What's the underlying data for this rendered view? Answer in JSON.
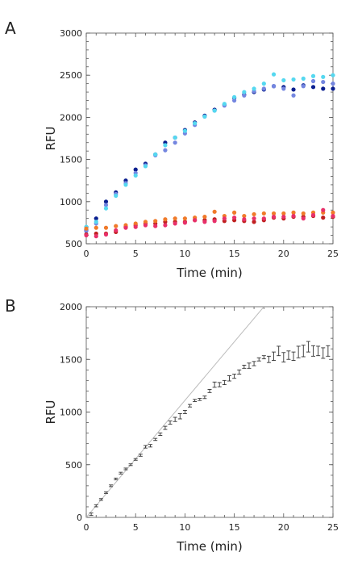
{
  "chart_data": [
    {
      "type": "scatter",
      "panel": "A",
      "xlabel": "Time (min)",
      "ylabel": "RFU",
      "xlim": [
        0,
        25
      ],
      "ylim": [
        500,
        3000
      ],
      "xticks": [
        0,
        5,
        10,
        15,
        20,
        25
      ],
      "yticks": [
        500,
        1000,
        1500,
        2000,
        2500,
        3000
      ],
      "grid": false,
      "series": [
        {
          "color": "#0a1f8f",
          "x": [
            0,
            1,
            2,
            3,
            4,
            5,
            6,
            7,
            8,
            9,
            10,
            11,
            12,
            13,
            14,
            15,
            16,
            17,
            18,
            19,
            20,
            21,
            22,
            23,
            24,
            25
          ],
          "y": [
            660,
            800,
            1000,
            1110,
            1250,
            1380,
            1450,
            1560,
            1700,
            1760,
            1850,
            1940,
            2020,
            2090,
            2150,
            2230,
            2270,
            2300,
            2330,
            2370,
            2360,
            2330,
            2380,
            2360,
            2340,
            2340
          ]
        },
        {
          "color": "#7486e0",
          "x": [
            0,
            1,
            2,
            3,
            4,
            5,
            6,
            7,
            8,
            9,
            10,
            11,
            12,
            13,
            14,
            15,
            16,
            17,
            18,
            19,
            20,
            21,
            22,
            23,
            24,
            25
          ],
          "y": [
            650,
            740,
            960,
            1090,
            1220,
            1340,
            1430,
            1550,
            1610,
            1700,
            1810,
            1910,
            2010,
            2080,
            2140,
            2200,
            2260,
            2310,
            2340,
            2370,
            2340,
            2260,
            2370,
            2430,
            2420,
            2400
          ]
        },
        {
          "color": "#55d8f0",
          "x": [
            0,
            1,
            2,
            3,
            4,
            5,
            6,
            7,
            8,
            9,
            10,
            11,
            12,
            13,
            14,
            15,
            16,
            17,
            18,
            19,
            20,
            21,
            22,
            23,
            24,
            25
          ],
          "y": [
            700,
            760,
            920,
            1070,
            1200,
            1310,
            1420,
            1560,
            1670,
            1760,
            1840,
            1930,
            2010,
            2080,
            2160,
            2240,
            2300,
            2340,
            2400,
            2510,
            2440,
            2450,
            2460,
            2490,
            2480,
            2500
          ]
        },
        {
          "color": "#c02020",
          "x": [
            0,
            1,
            2,
            3,
            4,
            5,
            6,
            7,
            8,
            9,
            10,
            11,
            12,
            13,
            14,
            15,
            16,
            17,
            18,
            19,
            20,
            21,
            22,
            23,
            24,
            25
          ],
          "y": [
            610,
            620,
            620,
            640,
            700,
            720,
            740,
            740,
            760,
            760,
            760,
            780,
            780,
            790,
            770,
            780,
            770,
            760,
            780,
            810,
            800,
            820,
            820,
            830,
            810,
            820
          ]
        },
        {
          "color": "#f07a2a",
          "x": [
            0,
            1,
            2,
            3,
            4,
            5,
            6,
            7,
            8,
            9,
            10,
            11,
            12,
            13,
            14,
            15,
            16,
            17,
            18,
            19,
            20,
            21,
            22,
            23,
            24,
            25
          ],
          "y": [
            680,
            690,
            690,
            710,
            720,
            740,
            760,
            770,
            790,
            800,
            800,
            810,
            820,
            880,
            830,
            870,
            830,
            850,
            860,
            860,
            860,
            870,
            860,
            870,
            870,
            870
          ]
        },
        {
          "color": "#e8306a",
          "x": [
            0,
            1,
            2,
            3,
            4,
            5,
            6,
            7,
            8,
            9,
            10,
            11,
            12,
            13,
            14,
            15,
            16,
            17,
            18,
            19,
            20,
            21,
            22,
            23,
            24,
            25
          ],
          "y": [
            600,
            590,
            610,
            660,
            690,
            700,
            720,
            710,
            720,
            740,
            750,
            780,
            760,
            770,
            800,
            810,
            790,
            800,
            800,
            820,
            820,
            830,
            800,
            840,
            900,
            830
          ]
        }
      ]
    },
    {
      "type": "scatter",
      "panel": "B",
      "xlabel": "Time (min)",
      "ylabel": "RFU",
      "xlim": [
        0,
        25
      ],
      "ylim": [
        0,
        2000
      ],
      "xticks": [
        0,
        5,
        10,
        15,
        20,
        25
      ],
      "yticks": [
        0,
        500,
        1000,
        1500,
        2000
      ],
      "grid": false,
      "series": [
        {
          "color": "#333333",
          "x": [
            0.5,
            1,
            1.5,
            2,
            2.5,
            3,
            3.5,
            4,
            4.5,
            5,
            5.5,
            6,
            6.5,
            7,
            7.5,
            8,
            8.5,
            9,
            9.5,
            10,
            10.5,
            11,
            11.5,
            12,
            12.5,
            13,
            13.5,
            14,
            14.5,
            15,
            15.5,
            16,
            16.5,
            17,
            17.5,
            18,
            18.5,
            19,
            19.5,
            20,
            20.5,
            21,
            21.5,
            22,
            22.5,
            23,
            23.5,
            24,
            24.5
          ],
          "y": [
            30,
            110,
            170,
            235,
            300,
            365,
            420,
            460,
            500,
            550,
            590,
            670,
            680,
            740,
            790,
            850,
            900,
            930,
            960,
            1000,
            1060,
            1110,
            1120,
            1140,
            1200,
            1260,
            1260,
            1280,
            1320,
            1340,
            1380,
            1430,
            1440,
            1460,
            1500,
            1520,
            1500,
            1530,
            1580,
            1520,
            1540,
            1530,
            1570,
            1580,
            1620,
            1580,
            1580,
            1560,
            1580
          ],
          "err": [
            12,
            10,
            8,
            8,
            8,
            8,
            8,
            8,
            8,
            8,
            10,
            12,
            12,
            10,
            12,
            15,
            15,
            20,
            25,
            15,
            12,
            10,
            10,
            12,
            15,
            25,
            20,
            20,
            25,
            20,
            20,
            15,
            25,
            20,
            15,
            15,
            30,
            40,
            45,
            45,
            40,
            40,
            55,
            55,
            50,
            50,
            45,
            50,
            50
          ]
        }
      ],
      "fit_line": {
        "x": [
          0,
          18
        ],
        "y": [
          0,
          2000
        ],
        "color": "#bbbbbb"
      }
    }
  ],
  "panels": {
    "a_letter": "A",
    "b_letter": "B"
  }
}
